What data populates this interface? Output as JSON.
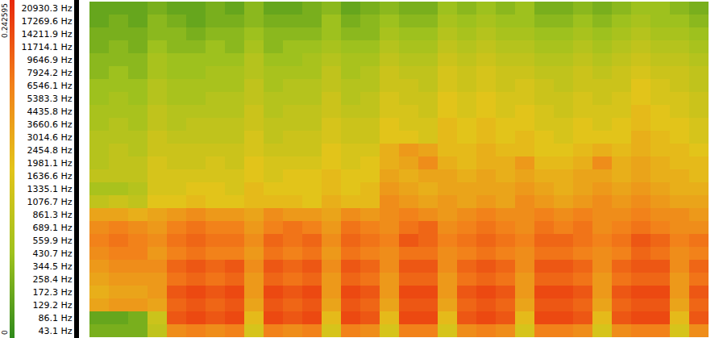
{
  "chart_data": {
    "type": "heatmap",
    "tick_labels": "y",
    "y": [
      20930.3,
      17269.6,
      14211.9,
      11714.1,
      9646.9,
      7924.2,
      6546.1,
      5383.3,
      4435.8,
      3660.6,
      3014.6,
      2454.8,
      1981.1,
      1636.6,
      1335.1,
      1076.7,
      861.3,
      689.1,
      559.9,
      430.7,
      344.5,
      258.4,
      172.3,
      129.2,
      86.1,
      43.1
    ],
    "yticks": [
      {
        "value": 20930.3,
        "label": "20930.3 Hz"
      },
      {
        "value": 17269.6,
        "label": "17269.6 Hz"
      },
      {
        "value": 14211.9,
        "label": "14211.9 Hz"
      },
      {
        "value": 11714.1,
        "label": "11714.1 Hz"
      },
      {
        "value": 9646.9,
        "label": "9646.9 Hz"
      },
      {
        "value": 7924.2,
        "label": "7924.2 Hz"
      },
      {
        "value": 6546.1,
        "label": "6546.1 Hz"
      },
      {
        "value": 5383.3,
        "label": "5383.3 Hz"
      },
      {
        "value": 4435.8,
        "label": "4435.8 Hz"
      },
      {
        "value": 3660.6,
        "label": "3660.6 Hz"
      },
      {
        "value": 3014.6,
        "label": "3014.6 Hz"
      },
      {
        "value": 2454.8,
        "label": "2454.8 Hz"
      },
      {
        "value": 1981.1,
        "label": "1981.1 Hz"
      },
      {
        "value": 1636.6,
        "label": "1636.6 Hz"
      },
      {
        "value": 1335.1,
        "label": "1335.1 Hz"
      },
      {
        "value": 1076.7,
        "label": "1076.7 Hz"
      },
      {
        "value": 861.3,
        "label": "861.3 Hz"
      },
      {
        "value": 689.1,
        "label": "689.1 Hz"
      },
      {
        "value": 559.9,
        "label": "559.9 Hz"
      },
      {
        "value": 430.7,
        "label": "430.7 Hz"
      },
      {
        "value": 344.5,
        "label": "344.5 Hz"
      },
      {
        "value": 258.4,
        "label": "258.4 Hz"
      },
      {
        "value": 172.3,
        "label": "172.3 Hz"
      },
      {
        "value": 129.2,
        "label": "129.2 Hz"
      },
      {
        "value": 86.1,
        "label": "86.1 Hz"
      },
      {
        "value": 43.1,
        "label": "43.1 Hz"
      }
    ],
    "cells": [
      [
        0.03,
        0.03,
        0.03,
        0.04,
        0.03,
        0.03,
        0.04,
        0.03,
        0.05,
        0.03,
        0.03,
        0.04,
        0.05,
        0.03,
        0.04,
        0.05,
        0.04,
        0.04,
        0.06,
        0.05,
        0.06,
        0.05,
        0.06,
        0.04,
        0.04,
        0.05,
        0.04,
        0.05,
        0.06,
        0.06,
        0.05,
        0.04
      ],
      [
        0.03,
        0.04,
        0.03,
        0.05,
        0.04,
        0.03,
        0.04,
        0.04,
        0.05,
        0.04,
        0.04,
        0.04,
        0.06,
        0.04,
        0.05,
        0.06,
        0.05,
        0.05,
        0.07,
        0.06,
        0.07,
        0.06,
        0.06,
        0.05,
        0.05,
        0.06,
        0.05,
        0.06,
        0.07,
        0.06,
        0.06,
        0.05
      ],
      [
        0.04,
        0.04,
        0.04,
        0.05,
        0.05,
        0.04,
        0.05,
        0.05,
        0.06,
        0.05,
        0.05,
        0.05,
        0.06,
        0.05,
        0.05,
        0.07,
        0.06,
        0.06,
        0.08,
        0.07,
        0.08,
        0.07,
        0.07,
        0.06,
        0.06,
        0.07,
        0.06,
        0.07,
        0.08,
        0.07,
        0.07,
        0.06
      ],
      [
        0.04,
        0.05,
        0.04,
        0.06,
        0.05,
        0.05,
        0.06,
        0.05,
        0.07,
        0.05,
        0.06,
        0.06,
        0.07,
        0.06,
        0.06,
        0.08,
        0.07,
        0.07,
        0.09,
        0.08,
        0.09,
        0.08,
        0.08,
        0.07,
        0.07,
        0.08,
        0.07,
        0.08,
        0.09,
        0.08,
        0.08,
        0.07
      ],
      [
        0.05,
        0.05,
        0.05,
        0.07,
        0.06,
        0.06,
        0.06,
        0.06,
        0.08,
        0.06,
        0.06,
        0.07,
        0.08,
        0.07,
        0.07,
        0.09,
        0.08,
        0.08,
        0.1,
        0.09,
        0.1,
        0.09,
        0.09,
        0.08,
        0.08,
        0.09,
        0.08,
        0.09,
        0.1,
        0.09,
        0.09,
        0.08
      ],
      [
        0.05,
        0.06,
        0.05,
        0.07,
        0.06,
        0.06,
        0.07,
        0.07,
        0.08,
        0.07,
        0.07,
        0.07,
        0.09,
        0.07,
        0.08,
        0.1,
        0.09,
        0.09,
        0.11,
        0.1,
        0.11,
        0.1,
        0.1,
        0.09,
        0.09,
        0.1,
        0.09,
        0.1,
        0.11,
        0.1,
        0.1,
        0.09
      ],
      [
        0.06,
        0.06,
        0.06,
        0.08,
        0.07,
        0.07,
        0.07,
        0.07,
        0.09,
        0.07,
        0.08,
        0.08,
        0.09,
        0.08,
        0.08,
        0.1,
        0.1,
        0.09,
        0.11,
        0.1,
        0.11,
        0.1,
        0.11,
        0.1,
        0.09,
        0.1,
        0.1,
        0.1,
        0.12,
        0.11,
        0.1,
        0.09
      ],
      [
        0.06,
        0.07,
        0.06,
        0.08,
        0.07,
        0.07,
        0.08,
        0.08,
        0.09,
        0.08,
        0.08,
        0.08,
        0.1,
        0.08,
        0.09,
        0.11,
        0.1,
        0.1,
        0.12,
        0.11,
        0.12,
        0.11,
        0.11,
        0.1,
        0.1,
        0.11,
        0.1,
        0.11,
        0.12,
        0.11,
        0.11,
        0.1
      ],
      [
        0.07,
        0.07,
        0.07,
        0.09,
        0.08,
        0.08,
        0.08,
        0.08,
        0.1,
        0.08,
        0.09,
        0.09,
        0.1,
        0.09,
        0.09,
        0.11,
        0.11,
        0.1,
        0.12,
        0.11,
        0.12,
        0.11,
        0.12,
        0.11,
        0.1,
        0.11,
        0.11,
        0.11,
        0.13,
        0.12,
        0.11,
        0.1
      ],
      [
        0.07,
        0.08,
        0.07,
        0.09,
        0.08,
        0.09,
        0.09,
        0.09,
        0.1,
        0.09,
        0.09,
        0.09,
        0.11,
        0.1,
        0.1,
        0.12,
        0.11,
        0.11,
        0.13,
        0.12,
        0.13,
        0.12,
        0.12,
        0.11,
        0.11,
        0.12,
        0.11,
        0.12,
        0.13,
        0.12,
        0.12,
        0.11
      ],
      [
        0.08,
        0.08,
        0.08,
        0.1,
        0.09,
        0.09,
        0.09,
        0.09,
        0.11,
        0.09,
        0.1,
        0.1,
        0.11,
        0.1,
        0.1,
        0.12,
        0.12,
        0.11,
        0.13,
        0.12,
        0.13,
        0.12,
        0.13,
        0.12,
        0.11,
        0.12,
        0.12,
        0.12,
        0.14,
        0.13,
        0.12,
        0.11
      ],
      [
        0.08,
        0.09,
        0.08,
        0.1,
        0.1,
        0.1,
        0.1,
        0.1,
        0.11,
        0.1,
        0.1,
        0.1,
        0.12,
        0.11,
        0.11,
        0.14,
        0.16,
        0.15,
        0.13,
        0.13,
        0.14,
        0.13,
        0.13,
        0.12,
        0.12,
        0.13,
        0.14,
        0.13,
        0.14,
        0.13,
        0.13,
        0.12
      ],
      [
        0.08,
        0.09,
        0.09,
        0.11,
        0.1,
        0.1,
        0.11,
        0.1,
        0.12,
        0.11,
        0.11,
        0.11,
        0.12,
        0.11,
        0.12,
        0.14,
        0.15,
        0.17,
        0.14,
        0.13,
        0.14,
        0.14,
        0.16,
        0.13,
        0.13,
        0.14,
        0.17,
        0.14,
        0.15,
        0.14,
        0.13,
        0.13
      ],
      [
        0.09,
        0.09,
        0.09,
        0.11,
        0.11,
        0.11,
        0.11,
        0.11,
        0.12,
        0.11,
        0.12,
        0.12,
        0.13,
        0.12,
        0.12,
        0.15,
        0.14,
        0.15,
        0.15,
        0.14,
        0.15,
        0.14,
        0.15,
        0.14,
        0.14,
        0.15,
        0.15,
        0.14,
        0.15,
        0.14,
        0.14,
        0.13
      ],
      [
        0.07,
        0.07,
        0.08,
        0.11,
        0.11,
        0.12,
        0.12,
        0.11,
        0.13,
        0.12,
        0.12,
        0.12,
        0.13,
        0.12,
        0.13,
        0.16,
        0.15,
        0.14,
        0.15,
        0.15,
        0.15,
        0.15,
        0.16,
        0.15,
        0.14,
        0.15,
        0.16,
        0.15,
        0.16,
        0.15,
        0.14,
        0.14
      ],
      [
        0.09,
        0.1,
        0.09,
        0.12,
        0.12,
        0.13,
        0.12,
        0.12,
        0.13,
        0.13,
        0.13,
        0.12,
        0.14,
        0.13,
        0.13,
        0.17,
        0.16,
        0.15,
        0.16,
        0.15,
        0.16,
        0.15,
        0.17,
        0.16,
        0.15,
        0.16,
        0.17,
        0.16,
        0.17,
        0.16,
        0.15,
        0.15
      ],
      [
        0.15,
        0.15,
        0.14,
        0.15,
        0.16,
        0.17,
        0.16,
        0.16,
        0.15,
        0.17,
        0.16,
        0.16,
        0.15,
        0.17,
        0.16,
        0.17,
        0.18,
        0.17,
        0.16,
        0.17,
        0.18,
        0.17,
        0.17,
        0.18,
        0.17,
        0.18,
        0.17,
        0.17,
        0.18,
        0.17,
        0.17,
        0.16
      ],
      [
        0.17,
        0.18,
        0.17,
        0.16,
        0.18,
        0.19,
        0.18,
        0.18,
        0.16,
        0.18,
        0.19,
        0.18,
        0.16,
        0.19,
        0.18,
        0.17,
        0.19,
        0.2,
        0.17,
        0.18,
        0.19,
        0.18,
        0.17,
        0.19,
        0.18,
        0.19,
        0.17,
        0.18,
        0.19,
        0.18,
        0.17,
        0.17
      ],
      [
        0.18,
        0.19,
        0.18,
        0.17,
        0.19,
        0.2,
        0.19,
        0.19,
        0.17,
        0.2,
        0.19,
        0.2,
        0.17,
        0.2,
        0.19,
        0.18,
        0.21,
        0.2,
        0.18,
        0.19,
        0.2,
        0.19,
        0.18,
        0.2,
        0.2,
        0.19,
        0.18,
        0.19,
        0.21,
        0.2,
        0.18,
        0.19
      ],
      [
        0.17,
        0.18,
        0.18,
        0.16,
        0.18,
        0.19,
        0.18,
        0.18,
        0.16,
        0.19,
        0.18,
        0.19,
        0.16,
        0.19,
        0.18,
        0.17,
        0.19,
        0.19,
        0.17,
        0.18,
        0.19,
        0.18,
        0.17,
        0.19,
        0.19,
        0.18,
        0.17,
        0.18,
        0.2,
        0.19,
        0.17,
        0.18
      ],
      [
        0.16,
        0.17,
        0.17,
        0.17,
        0.2,
        0.21,
        0.2,
        0.21,
        0.17,
        0.21,
        0.2,
        0.21,
        0.17,
        0.21,
        0.2,
        0.17,
        0.21,
        0.21,
        0.17,
        0.2,
        0.21,
        0.2,
        0.17,
        0.21,
        0.21,
        0.2,
        0.17,
        0.2,
        0.21,
        0.21,
        0.17,
        0.2
      ],
      [
        0.15,
        0.16,
        0.16,
        0.16,
        0.19,
        0.2,
        0.19,
        0.2,
        0.16,
        0.2,
        0.19,
        0.2,
        0.16,
        0.2,
        0.19,
        0.16,
        0.2,
        0.2,
        0.16,
        0.19,
        0.2,
        0.19,
        0.16,
        0.2,
        0.2,
        0.19,
        0.16,
        0.19,
        0.2,
        0.2,
        0.16,
        0.19
      ],
      [
        0.14,
        0.15,
        0.15,
        0.16,
        0.21,
        0.22,
        0.21,
        0.22,
        0.16,
        0.22,
        0.21,
        0.22,
        0.16,
        0.22,
        0.21,
        0.16,
        0.22,
        0.22,
        0.16,
        0.21,
        0.22,
        0.21,
        0.16,
        0.22,
        0.22,
        0.21,
        0.16,
        0.21,
        0.22,
        0.22,
        0.16,
        0.21
      ],
      [
        0.15,
        0.16,
        0.16,
        0.15,
        0.2,
        0.21,
        0.2,
        0.21,
        0.15,
        0.21,
        0.2,
        0.21,
        0.15,
        0.21,
        0.2,
        0.15,
        0.21,
        0.21,
        0.15,
        0.2,
        0.21,
        0.2,
        0.15,
        0.21,
        0.21,
        0.2,
        0.15,
        0.2,
        0.21,
        0.21,
        0.15,
        0.2
      ],
      [
        0.03,
        0.03,
        0.04,
        0.1,
        0.21,
        0.22,
        0.21,
        0.22,
        0.13,
        0.22,
        0.21,
        0.22,
        0.13,
        0.22,
        0.21,
        0.13,
        0.22,
        0.22,
        0.13,
        0.21,
        0.22,
        0.21,
        0.13,
        0.22,
        0.22,
        0.21,
        0.13,
        0.21,
        0.22,
        0.22,
        0.13,
        0.21
      ],
      [
        0.04,
        0.04,
        0.04,
        0.09,
        0.17,
        0.18,
        0.17,
        0.18,
        0.11,
        0.18,
        0.17,
        0.18,
        0.11,
        0.18,
        0.17,
        0.11,
        0.18,
        0.18,
        0.11,
        0.17,
        0.18,
        0.17,
        0.11,
        0.18,
        0.18,
        0.17,
        0.11,
        0.17,
        0.18,
        0.18,
        0.11,
        0.17
      ]
    ],
    "colorbar": {
      "range": [
        0,
        0.242595
      ],
      "ticks": [
        0,
        0.242595
      ],
      "colors": [
        "#2f8a1c",
        "#9fc21e",
        "#e3c41a",
        "#f2801a",
        "#e8280c"
      ]
    }
  }
}
